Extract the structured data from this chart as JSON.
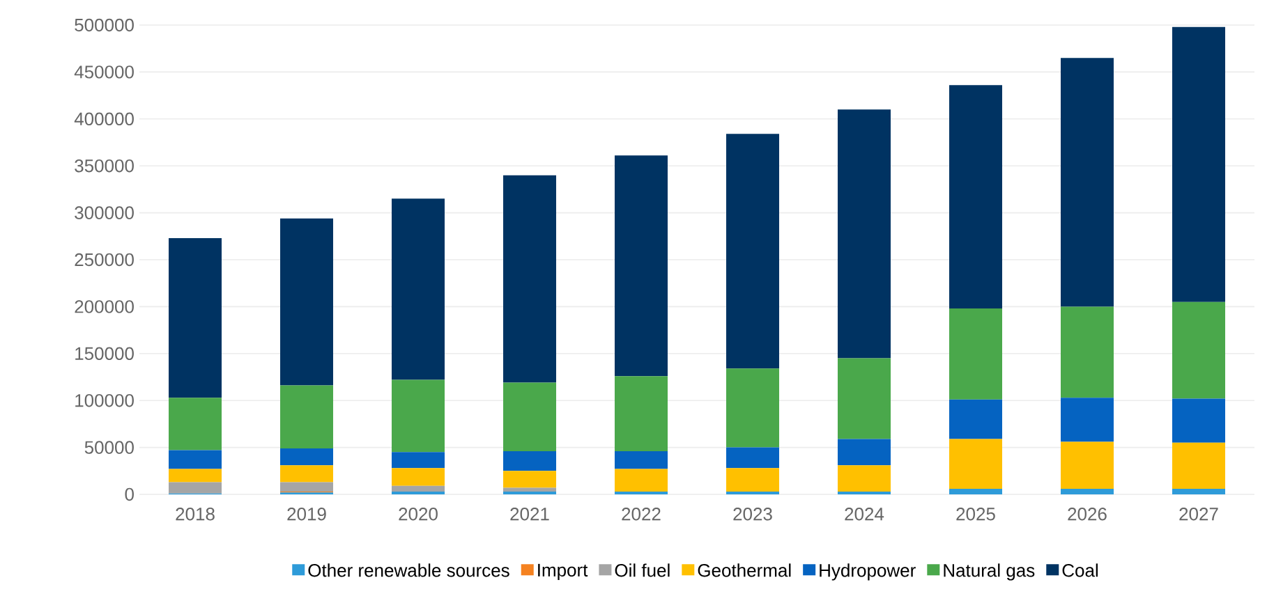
{
  "chart_data": {
    "type": "bar",
    "stacked": true,
    "categories": [
      "2018",
      "2019",
      "2020",
      "2021",
      "2022",
      "2023",
      "2024",
      "2025",
      "2026",
      "2027"
    ],
    "series": [
      {
        "name": "Other renewable sources",
        "color": "#2e9bd9",
        "values": [
          1000,
          2000,
          3000,
          3000,
          3000,
          3000,
          3000,
          6000,
          6000,
          6000
        ]
      },
      {
        "name": "Import",
        "color": "#f58220",
        "values": [
          0,
          1000,
          0,
          0,
          0,
          0,
          0,
          0,
          0,
          0
        ]
      },
      {
        "name": "Oil fuel",
        "color": "#a5a5a5",
        "values": [
          12000,
          10000,
          6000,
          4000,
          0,
          0,
          0,
          0,
          0,
          null
        ]
      },
      {
        "name": "Geothermal",
        "color": "#ffc000",
        "values": [
          14000,
          18000,
          19000,
          18000,
          24000,
          25000,
          28000,
          53000,
          50000,
          49000
        ]
      },
      {
        "name": "Hydropower",
        "color": "#0563c1",
        "values": [
          20000,
          18000,
          17000,
          21000,
          19000,
          22000,
          28000,
          42000,
          47000,
          47000
        ]
      },
      {
        "name": "Natural gas",
        "color": "#4aa84b",
        "values": [
          56000,
          67000,
          77000,
          73000,
          80000,
          84000,
          86000,
          97000,
          97000,
          103000
        ]
      },
      {
        "name": "Coal",
        "color": "#003362",
        "values": [
          170000,
          178000,
          193000,
          221000,
          235000,
          250000,
          265000,
          238000,
          265000,
          293000
        ]
      }
    ],
    "ylim": [
      0,
      500000
    ],
    "yticks": [
      0,
      50000,
      100000,
      150000,
      200000,
      250000,
      300000,
      350000,
      400000,
      450000,
      500000
    ],
    "grid": "y",
    "legend": "bottom"
  }
}
